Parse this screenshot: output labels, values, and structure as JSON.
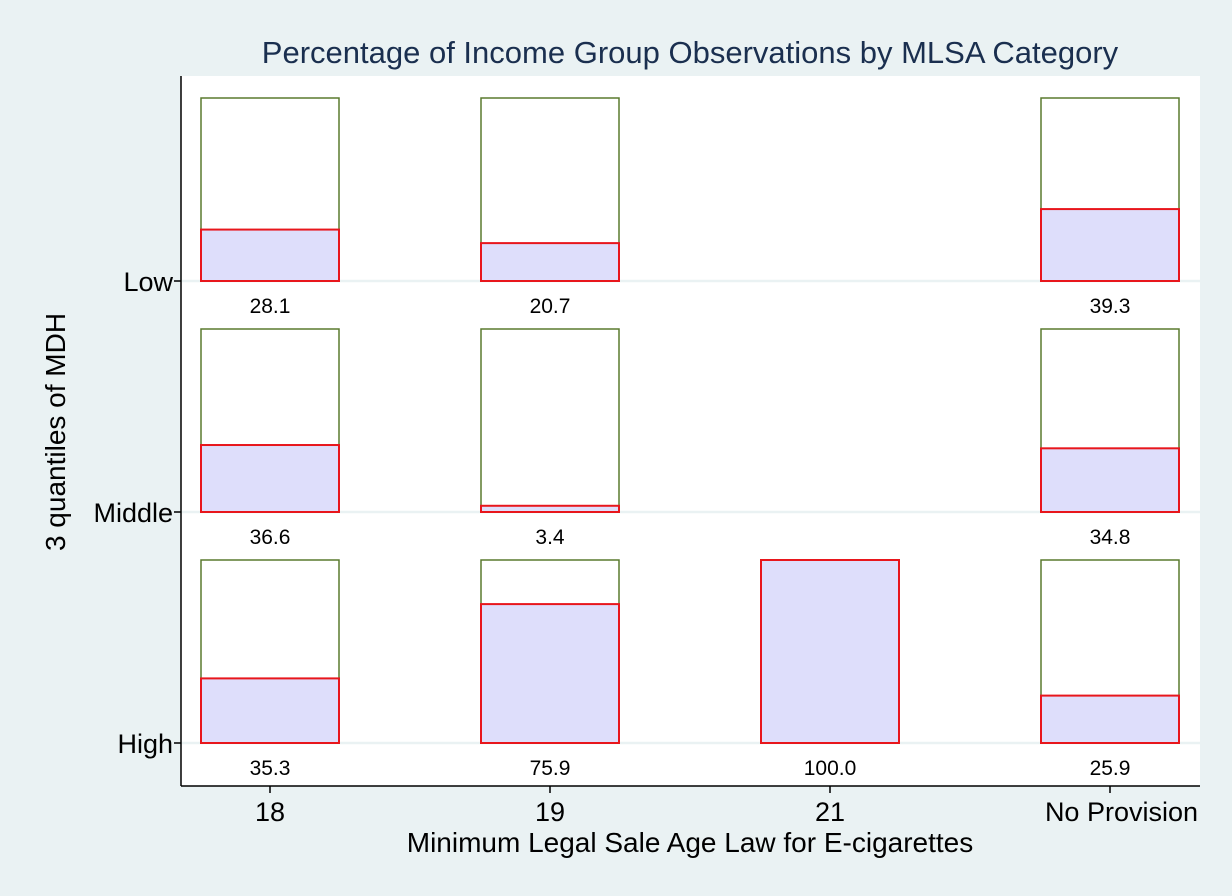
{
  "chart_data": {
    "type": "bar",
    "title": "Percentage of Income Group Observations by MLSA Category",
    "xlabel": "Minimum Legal Sale Age Law for E-cigarettes",
    "ylabel": "3 quantiles of MDH",
    "categories": [
      "18",
      "19",
      "21",
      "No Provision"
    ],
    "rows": [
      "Low",
      "Middle",
      "High"
    ],
    "ylim": [
      0,
      100
    ],
    "series": [
      {
        "row": "Low",
        "values": [
          28.1,
          20.7,
          null,
          39.3
        ],
        "labels": [
          "28.1",
          "20.7",
          "",
          "39.3"
        ]
      },
      {
        "row": "Middle",
        "values": [
          36.6,
          3.4,
          null,
          34.8
        ],
        "labels": [
          "36.6",
          "3.4",
          "",
          "34.8"
        ]
      },
      {
        "row": "High",
        "values": [
          35.3,
          75.9,
          100.0,
          25.9
        ],
        "labels": [
          "35.3",
          "75.9",
          "100.0",
          "25.9"
        ]
      }
    ],
    "colors": {
      "background": "#eaf2f3",
      "plot_background": "#ffffff",
      "outline": "#5a7a2e",
      "bar_stroke": "#e8161c",
      "bar_fill": "#dedefb",
      "gridline": "#eaf2f3",
      "title": "#1a2f4f",
      "text": "#000000"
    },
    "grid": true
  }
}
